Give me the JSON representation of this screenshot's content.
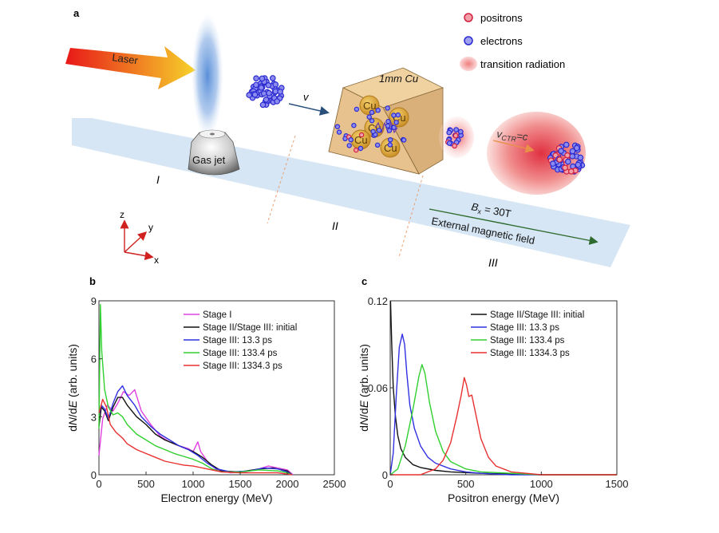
{
  "panel_a": {
    "label": "a",
    "laser": "Laser",
    "gas_jet": "Gas jet",
    "velocity": "v",
    "target_label": "1mm Cu",
    "cu": "Cu",
    "legend": [
      {
        "label": "positrons",
        "color": "#d8304a"
      },
      {
        "label": "electrons",
        "color": "#3a3ad0"
      },
      {
        "label": "transition radiation",
        "color": "#f4a6a6"
      }
    ],
    "vctr_main": "v",
    "vctr_sub": "CTR",
    "vctr_rest": "=c",
    "stages": [
      "I",
      "II",
      "III"
    ],
    "bfield_main": "B",
    "bfield_sub": "x",
    "bfield_rest": " = 30T",
    "field_caption": "External magnetic field",
    "axes": {
      "z": "z",
      "y": "y",
      "x": "x"
    }
  },
  "chart_data": [
    {
      "panel": "b",
      "type": "line",
      "xlabel": "Electron energy (MeV)",
      "ylabel_pre": "dN/dE",
      "ylabel_post": " (arb. units)",
      "xlim": [
        0,
        2500
      ],
      "ylim": [
        0,
        9
      ],
      "xticks": [
        "0",
        "500",
        "1000",
        "1500",
        "2000",
        "2500"
      ],
      "yticks": [
        "0",
        "3",
        "6",
        "9"
      ],
      "series": [
        {
          "name": "Stage I",
          "color": "#e040e0",
          "points": [
            [
              0,
              1.0
            ],
            [
              40,
              2.9
            ],
            [
              90,
              3.6
            ],
            [
              150,
              3.3
            ],
            [
              200,
              3.7
            ],
            [
              260,
              4.3
            ],
            [
              320,
              4.1
            ],
            [
              380,
              4.4
            ],
            [
              450,
              3.3
            ],
            [
              550,
              2.6
            ],
            [
              650,
              2.0
            ],
            [
              750,
              1.7
            ],
            [
              850,
              1.5
            ],
            [
              950,
              1.35
            ],
            [
              1000,
              1.2
            ],
            [
              1050,
              1.7
            ],
            [
              1080,
              1.2
            ],
            [
              1150,
              0.7
            ],
            [
              1250,
              0.25
            ],
            [
              1400,
              0.1
            ],
            [
              1550,
              0.15
            ],
            [
              1700,
              0.3
            ],
            [
              1800,
              0.45
            ],
            [
              1900,
              0.35
            ],
            [
              2000,
              0.25
            ],
            [
              2060,
              0
            ]
          ]
        },
        {
          "name": "Stage II/Stage III: initial",
          "color": "#111111",
          "points": [
            [
              0,
              2.5
            ],
            [
              25,
              3.5
            ],
            [
              60,
              3.3
            ],
            [
              100,
              2.8
            ],
            [
              150,
              3.5
            ],
            [
              200,
              4.0
            ],
            [
              250,
              4.0
            ],
            [
              300,
              3.6
            ],
            [
              400,
              3.0
            ],
            [
              500,
              2.6
            ],
            [
              600,
              2.1
            ],
            [
              700,
              1.8
            ],
            [
              800,
              1.6
            ],
            [
              900,
              1.4
            ],
            [
              1000,
              1.2
            ],
            [
              1100,
              0.9
            ],
            [
              1200,
              0.5
            ],
            [
              1300,
              0.2
            ],
            [
              1500,
              0.15
            ],
            [
              1700,
              0.3
            ],
            [
              1850,
              0.35
            ],
            [
              2000,
              0.2
            ],
            [
              2050,
              0
            ]
          ]
        },
        {
          "name": "Stage III: 13.3 ps",
          "color": "#3030e0",
          "points": [
            [
              0,
              3.1
            ],
            [
              25,
              3.6
            ],
            [
              60,
              3.4
            ],
            [
              100,
              2.9
            ],
            [
              150,
              3.7
            ],
            [
              200,
              4.3
            ],
            [
              250,
              4.6
            ],
            [
              300,
              4.1
            ],
            [
              380,
              3.6
            ],
            [
              450,
              3.0
            ],
            [
              550,
              2.5
            ],
            [
              650,
              2.1
            ],
            [
              750,
              1.8
            ],
            [
              850,
              1.5
            ],
            [
              950,
              1.3
            ],
            [
              1050,
              1.0
            ],
            [
              1150,
              0.6
            ],
            [
              1250,
              0.3
            ],
            [
              1400,
              0.15
            ],
            [
              1600,
              0.2
            ],
            [
              1750,
              0.35
            ],
            [
              1900,
              0.3
            ],
            [
              2000,
              0.15
            ],
            [
              2050,
              0
            ]
          ]
        },
        {
          "name": "Stage III: 133.4 ps",
          "color": "#30d030",
          "points": [
            [
              0,
              2.4
            ],
            [
              15,
              8.8
            ],
            [
              30,
              6.4
            ],
            [
              60,
              4.4
            ],
            [
              100,
              3.5
            ],
            [
              150,
              3.1
            ],
            [
              200,
              3.2
            ],
            [
              250,
              3.0
            ],
            [
              300,
              2.6
            ],
            [
              400,
              2.1
            ],
            [
              500,
              1.8
            ],
            [
              600,
              1.5
            ],
            [
              700,
              1.3
            ],
            [
              800,
              1.1
            ],
            [
              900,
              0.95
            ],
            [
              1000,
              0.8
            ],
            [
              1100,
              0.6
            ],
            [
              1200,
              0.3
            ],
            [
              1300,
              0.15
            ],
            [
              1500,
              0.15
            ],
            [
              1700,
              0.25
            ],
            [
              1900,
              0.2
            ],
            [
              2000,
              0.1
            ],
            [
              2050,
              0
            ]
          ]
        },
        {
          "name": "Stage III: 1334.3 ps",
          "color": "#e83030",
          "points": [
            [
              0,
              3.2
            ],
            [
              40,
              3.9
            ],
            [
              80,
              3.5
            ],
            [
              120,
              2.6
            ],
            [
              180,
              2.2
            ],
            [
              250,
              1.9
            ],
            [
              300,
              1.6
            ],
            [
              400,
              1.3
            ],
            [
              500,
              1.1
            ],
            [
              600,
              0.9
            ],
            [
              700,
              0.7
            ],
            [
              800,
              0.6
            ],
            [
              900,
              0.5
            ],
            [
              1000,
              0.45
            ],
            [
              1100,
              0.35
            ],
            [
              1200,
              0.25
            ],
            [
              1300,
              0.15
            ],
            [
              1500,
              0.1
            ],
            [
              1700,
              0.1
            ],
            [
              1900,
              0.1
            ],
            [
              2050,
              0
            ]
          ]
        }
      ]
    },
    {
      "panel": "c",
      "type": "line",
      "xlabel": "Positron energy (MeV)",
      "ylabel_pre": "dN/dE",
      "ylabel_post": " (arb. units)",
      "xlim": [
        0,
        1500
      ],
      "ylim": [
        0,
        0.12
      ],
      "xticks": [
        "0",
        "500",
        "1000",
        "1500"
      ],
      "yticks": [
        "0",
        "0.06",
        "0.12"
      ],
      "series": [
        {
          "name": "Stage II/Stage III: initial",
          "color": "#111111",
          "points": [
            [
              2,
              0.12
            ],
            [
              10,
              0.09
            ],
            [
              20,
              0.06
            ],
            [
              35,
              0.04
            ],
            [
              50,
              0.027
            ],
            [
              70,
              0.018
            ],
            [
              100,
              0.012
            ],
            [
              150,
              0.007
            ],
            [
              200,
              0.005
            ],
            [
              300,
              0.003
            ],
            [
              400,
              0.002
            ],
            [
              600,
              0.001
            ],
            [
              1000,
              0
            ],
            [
              1500,
              0
            ]
          ]
        },
        {
          "name": "Stage III: 13.3 ps",
          "color": "#3030e0",
          "points": [
            [
              0,
              0
            ],
            [
              20,
              0.015
            ],
            [
              40,
              0.055
            ],
            [
              60,
              0.088
            ],
            [
              80,
              0.097
            ],
            [
              95,
              0.09
            ],
            [
              110,
              0.07
            ],
            [
              130,
              0.048
            ],
            [
              160,
              0.032
            ],
            [
              200,
              0.02
            ],
            [
              250,
              0.012
            ],
            [
              300,
              0.008
            ],
            [
              400,
              0.004
            ],
            [
              500,
              0.002
            ],
            [
              600,
              0.001
            ],
            [
              800,
              0
            ],
            [
              1500,
              0
            ]
          ]
        },
        {
          "name": "Stage III: 133.4 ps",
          "color": "#30d030",
          "points": [
            [
              0,
              0
            ],
            [
              50,
              0.004
            ],
            [
              100,
              0.02
            ],
            [
              150,
              0.045
            ],
            [
              190,
              0.068
            ],
            [
              210,
              0.076
            ],
            [
              230,
              0.07
            ],
            [
              260,
              0.05
            ],
            [
              300,
              0.03
            ],
            [
              350,
              0.016
            ],
            [
              400,
              0.009
            ],
            [
              500,
              0.004
            ],
            [
              600,
              0.002
            ],
            [
              800,
              0.001
            ],
            [
              1000,
              0
            ],
            [
              1500,
              0
            ]
          ]
        },
        {
          "name": "Stage III: 1334.3 ps",
          "color": "#e83030",
          "points": [
            [
              0,
              0
            ],
            [
              200,
              0
            ],
            [
              300,
              0.004
            ],
            [
              350,
              0.01
            ],
            [
              400,
              0.022
            ],
            [
              440,
              0.04
            ],
            [
              470,
              0.055
            ],
            [
              490,
              0.067
            ],
            [
              505,
              0.062
            ],
            [
              520,
              0.054
            ],
            [
              540,
              0.055
            ],
            [
              560,
              0.045
            ],
            [
              600,
              0.025
            ],
            [
              650,
              0.012
            ],
            [
              700,
              0.006
            ],
            [
              800,
              0.002
            ],
            [
              900,
              0.001
            ],
            [
              1000,
              0
            ],
            [
              1500,
              0
            ]
          ]
        }
      ]
    }
  ]
}
